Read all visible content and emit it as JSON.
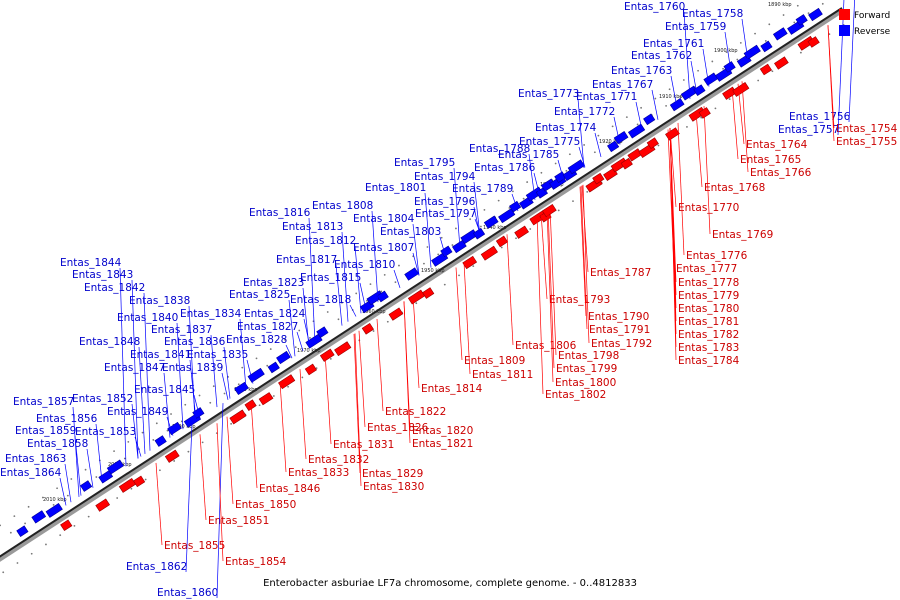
{
  "legend": {
    "items": [
      {
        "label": "Forward",
        "color": "#ff0000"
      },
      {
        "label": "Reverse",
        "color": "#0000ff"
      }
    ]
  },
  "caption": "Enterobacter asburiae LF7a chromosome, complete genome. - 0..4812833",
  "ticks": [
    "1890 kbp",
    "1900 kbp",
    "1910 kbp",
    "1920 kbp",
    "1930 kbp",
    "1940 kbp",
    "1950 kbp",
    "1960 kbp",
    "1970 kbp",
    "1980 kbp",
    "1990 kbp",
    "2000 kbp",
    "2010 kbp"
  ],
  "genes": {
    "reverse": [
      "Entas_1760",
      "Entas_1758",
      "Entas_1759",
      "Entas_1761",
      "Entas_1762",
      "Entas_1763",
      "Entas_1767",
      "Entas_1773",
      "Entas_1771",
      "Entas_1772",
      "Entas_1774",
      "Entas_1775",
      "Entas_1788",
      "Entas_1785",
      "Entas_1786",
      "Entas_1795",
      "Entas_1794",
      "Entas_1801",
      "Entas_1789",
      "Entas_1796",
      "Entas_1797",
      "Entas_1808",
      "Entas_1816",
      "Entas_1813",
      "Entas_1804",
      "Entas_1803",
      "Entas_1812",
      "Entas_1807",
      "Entas_1817",
      "Entas_1810",
      "Entas_1815",
      "Entas_1844",
      "Entas_1843",
      "Entas_1842",
      "Entas_1823",
      "Entas_1825",
      "Entas_1818",
      "Entas_1838",
      "Entas_1834",
      "Entas_1824",
      "Entas_1840",
      "Entas_1837",
      "Entas_1827",
      "Entas_1848",
      "Entas_1836",
      "Entas_1828",
      "Entas_1841",
      "Entas_1835",
      "Entas_1847",
      "Entas_1839",
      "Entas_1845",
      "Entas_1857",
      "Entas_1852",
      "Entas_1856",
      "Entas_1849",
      "Entas_1859",
      "Entas_1853",
      "Entas_1858",
      "Entas_1863",
      "Entas_1864",
      "Entas_1862",
      "Entas_1860",
      "Entas_1756",
      "Entas_1757"
    ],
    "forward": [
      "Entas_1754",
      "Entas_1755",
      "Entas_1764",
      "Entas_1765",
      "Entas_1766",
      "Entas_1768",
      "Entas_1770",
      "Entas_1769",
      "Entas_1776",
      "Entas_1777",
      "Entas_1787",
      "Entas_1778",
      "Entas_1779",
      "Entas_1780",
      "Entas_1781",
      "Entas_1782",
      "Entas_1783",
      "Entas_1784",
      "Entas_1793",
      "Entas_1790",
      "Entas_1791",
      "Entas_1792",
      "Entas_1806",
      "Entas_1798",
      "Entas_1799",
      "Entas_1800",
      "Entas_1802",
      "Entas_1809",
      "Entas_1811",
      "Entas_1814",
      "Entas_1822",
      "Entas_1826",
      "Entas_1820",
      "Entas_1821",
      "Entas_1831",
      "Entas_1832",
      "Entas_1833",
      "Entas_1829",
      "Entas_1830",
      "Entas_1846",
      "Entas_1850",
      "Entas_1851",
      "Entas_1855",
      "Entas_1854"
    ]
  }
}
